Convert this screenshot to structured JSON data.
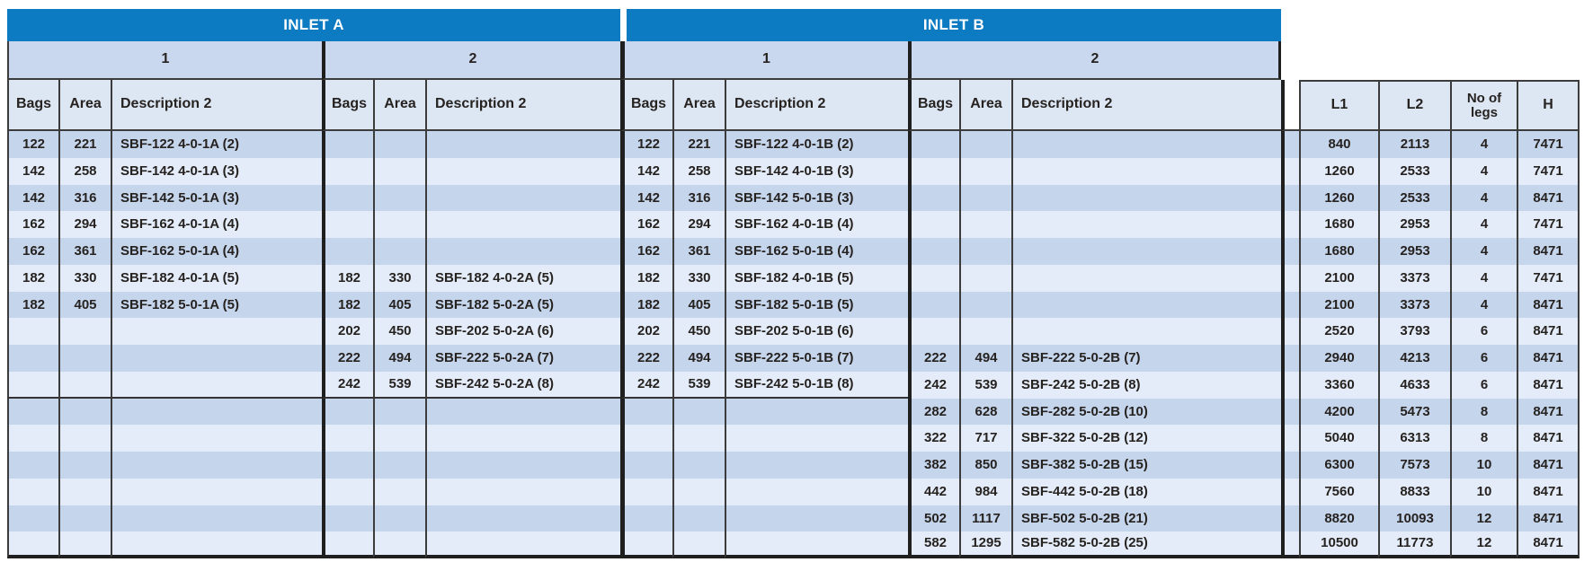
{
  "header": {
    "inlet_a": "INLET A",
    "inlet_b": "INLET B",
    "group1": "1",
    "group2": "2",
    "cols": {
      "bags": "Bags",
      "area": "Area",
      "desc": "Description 2"
    },
    "right_cols": {
      "l1": "L1",
      "l2": "L2",
      "legs": "No of legs",
      "h": "H"
    }
  },
  "colors": {
    "header_blue": "#0c7bc2",
    "subheader_bg": "#c9d8ee",
    "colheader_bg": "#dde7f4",
    "row_dark": "#c5d5ec",
    "row_light": "#e3ecf8",
    "border_dark": "#1f1f1f",
    "border_thin": "#3c3c3c",
    "text": "#262220",
    "header_text": "#ffffff"
  },
  "rows": [
    {
      "a1": {
        "bags": "122",
        "area": "221",
        "desc": "SBF-122 4-0-1A (2)"
      },
      "a2": null,
      "b1": {
        "bags": "122",
        "area": "221",
        "desc": "SBF-122 4-0-1B (2)"
      },
      "b2": null,
      "l1": "840",
      "l2": "2113",
      "legs": "4",
      "h": "7471"
    },
    {
      "a1": {
        "bags": "142",
        "area": "258",
        "desc": "SBF-142 4-0-1A (3)"
      },
      "a2": null,
      "b1": {
        "bags": "142",
        "area": "258",
        "desc": "SBF-142 4-0-1B (3)"
      },
      "b2": null,
      "l1": "1260",
      "l2": "2533",
      "legs": "4",
      "h": "7471"
    },
    {
      "a1": {
        "bags": "142",
        "area": "316",
        "desc": "SBF-142 5-0-1A (3)"
      },
      "a2": null,
      "b1": {
        "bags": "142",
        "area": "316",
        "desc": "SBF-142 5-0-1B (3)"
      },
      "b2": null,
      "l1": "1260",
      "l2": "2533",
      "legs": "4",
      "h": "8471"
    },
    {
      "a1": {
        "bags": "162",
        "area": "294",
        "desc": "SBF-162 4-0-1A (4)"
      },
      "a2": null,
      "b1": {
        "bags": "162",
        "area": "294",
        "desc": "SBF-162 4-0-1B (4)"
      },
      "b2": null,
      "l1": "1680",
      "l2": "2953",
      "legs": "4",
      "h": "7471"
    },
    {
      "a1": {
        "bags": "162",
        "area": "361",
        "desc": "SBF-162 5-0-1A (4)"
      },
      "a2": null,
      "b1": {
        "bags": "162",
        "area": "361",
        "desc": "SBF-162 5-0-1B (4)"
      },
      "b2": null,
      "l1": "1680",
      "l2": "2953",
      "legs": "4",
      "h": "8471"
    },
    {
      "a1": {
        "bags": "182",
        "area": "330",
        "desc": "SBF-182 4-0-1A (5)"
      },
      "a2": {
        "bags": "182",
        "area": "330",
        "desc": "SBF-182 4-0-2A (5)"
      },
      "b1": {
        "bags": "182",
        "area": "330",
        "desc": "SBF-182 4-0-1B (5)"
      },
      "b2": null,
      "l1": "2100",
      "l2": "3373",
      "legs": "4",
      "h": "7471"
    },
    {
      "a1": {
        "bags": "182",
        "area": "405",
        "desc": "SBF-182 5-0-1A (5)"
      },
      "a2": {
        "bags": "182",
        "area": "405",
        "desc": "SBF-182 5-0-2A (5)"
      },
      "b1": {
        "bags": "182",
        "area": "405",
        "desc": "SBF-182 5-0-1B (5)"
      },
      "b2": null,
      "l1": "2100",
      "l2": "3373",
      "legs": "4",
      "h": "8471"
    },
    {
      "a1": null,
      "a2": {
        "bags": "202",
        "area": "450",
        "desc": "SBF-202 5-0-2A (6)"
      },
      "b1": {
        "bags": "202",
        "area": "450",
        "desc": "SBF-202 5-0-1B (6)"
      },
      "b2": null,
      "l1": "2520",
      "l2": "3793",
      "legs": "6",
      "h": "8471"
    },
    {
      "a1": null,
      "a2": {
        "bags": "222",
        "area": "494",
        "desc": "SBF-222 5-0-2A (7)"
      },
      "b1": {
        "bags": "222",
        "area": "494",
        "desc": "SBF-222 5-0-1B (7)"
      },
      "b2": {
        "bags": "222",
        "area": "494",
        "desc": "SBF-222 5-0-2B (7)"
      },
      "l1": "2940",
      "l2": "4213",
      "legs": "6",
      "h": "8471"
    },
    {
      "a1": null,
      "a2": {
        "bags": "242",
        "area": "539",
        "desc": "SBF-242 5-0-2A (8)"
      },
      "b1": {
        "bags": "242",
        "area": "539",
        "desc": "SBF-242 5-0-1B (8)"
      },
      "b2": {
        "bags": "242",
        "area": "539",
        "desc": "SBF-242 5-0-2B (8)"
      },
      "l1": "3360",
      "l2": "4633",
      "legs": "6",
      "h": "8471"
    },
    {
      "a1": null,
      "a2": null,
      "b1": null,
      "b2": {
        "bags": "282",
        "area": "628",
        "desc": "SBF-282 5-0-2B (10)"
      },
      "l1": "4200",
      "l2": "5473",
      "legs": "8",
      "h": "8471"
    },
    {
      "a1": null,
      "a2": null,
      "b1": null,
      "b2": {
        "bags": "322",
        "area": "717",
        "desc": "SBF-322 5-0-2B (12)"
      },
      "l1": "5040",
      "l2": "6313",
      "legs": "8",
      "h": "8471"
    },
    {
      "a1": null,
      "a2": null,
      "b1": null,
      "b2": {
        "bags": "382",
        "area": "850",
        "desc": "SBF-382 5-0-2B (15)"
      },
      "l1": "6300",
      "l2": "7573",
      "legs": "10",
      "h": "8471"
    },
    {
      "a1": null,
      "a2": null,
      "b1": null,
      "b2": {
        "bags": "442",
        "area": "984",
        "desc": "SBF-442 5-0-2B (18)"
      },
      "l1": "7560",
      "l2": "8833",
      "legs": "10",
      "h": "8471"
    },
    {
      "a1": null,
      "a2": null,
      "b1": null,
      "b2": {
        "bags": "502",
        "area": "1117",
        "desc": "SBF-502 5-0-2B (21)"
      },
      "l1": "8820",
      "l2": "10093",
      "legs": "12",
      "h": "8471"
    },
    {
      "a1": null,
      "a2": null,
      "b1": null,
      "b2": {
        "bags": "582",
        "area": "1295",
        "desc": "SBF-582 5-0-2B (25)"
      },
      "l1": "10500",
      "l2": "11773",
      "legs": "12",
      "h": "8471"
    }
  ]
}
